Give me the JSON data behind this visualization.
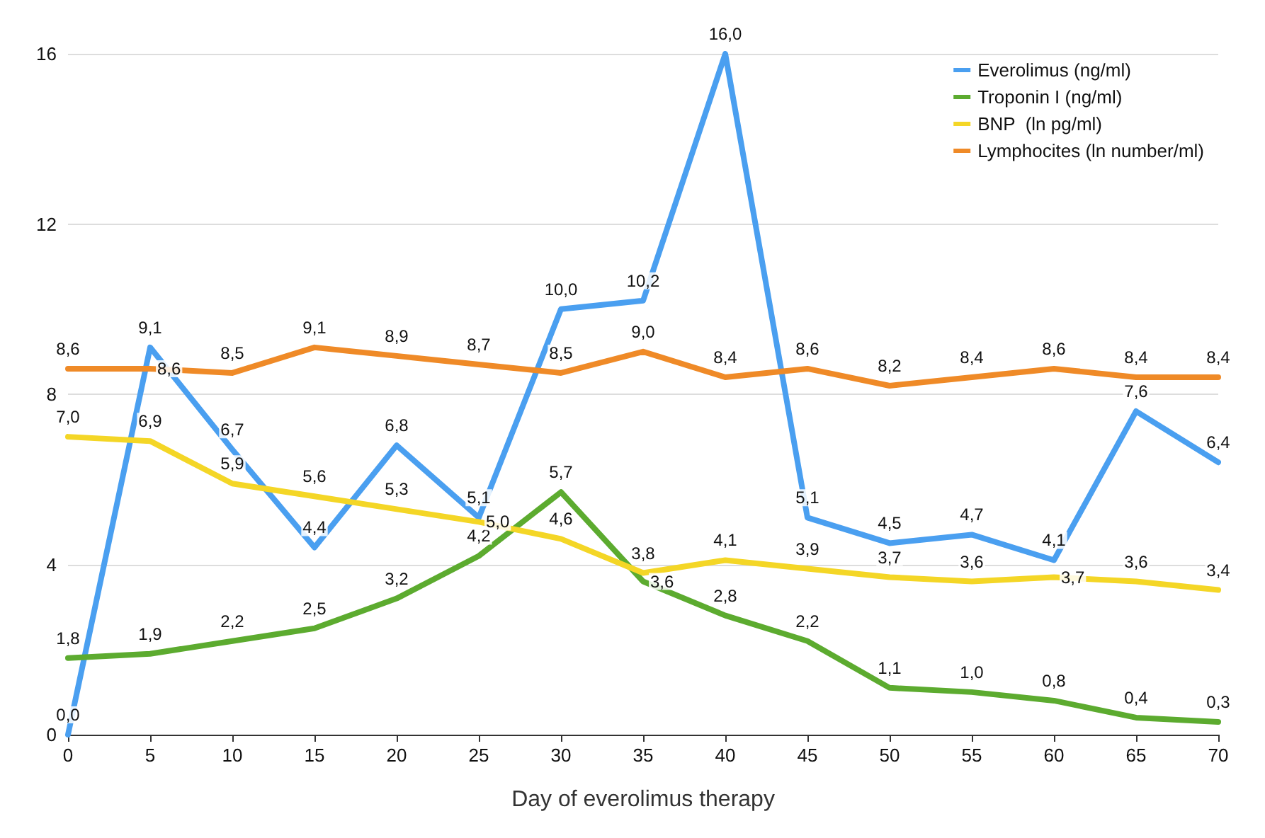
{
  "chart_data": {
    "type": "line",
    "xlabel": "Day of everolimus therapy",
    "x": [
      0,
      5,
      10,
      15,
      20,
      25,
      30,
      35,
      40,
      45,
      50,
      55,
      60,
      65,
      70
    ],
    "xlim": [
      0,
      70
    ],
    "xticks": [
      0,
      5,
      10,
      15,
      20,
      25,
      30,
      35,
      40,
      45,
      50,
      55,
      60,
      65,
      70
    ],
    "ylim": [
      0,
      16
    ],
    "yticks": [
      0,
      4,
      8,
      12,
      16
    ],
    "grid": "y",
    "legend": "top right",
    "line_style": "solid",
    "series": [
      {
        "name": "Everolimus (ng/ml)",
        "color": "#4a9ff0",
        "values": [
          0,
          9.1,
          6.7,
          4.4,
          6.8,
          5.1,
          10,
          10.2,
          16,
          5.1,
          4.5,
          4.7,
          4.1,
          7.6,
          6.4
        ],
        "value_labels": [
          "0,0",
          "9,1",
          "6,7",
          "4,4",
          "6,8",
          "5,1",
          "10,0",
          "10,2",
          "16,0",
          "5,1",
          "4,5",
          "4,7",
          "4,1",
          "7,6",
          "6,4"
        ]
      },
      {
        "name": "Troponin I (ng/ml)",
        "color": "#5cab2f",
        "values": [
          1.8,
          1.9,
          2.2,
          2.5,
          3.2,
          4.2,
          5.7,
          3.6,
          2.8,
          2.2,
          1.1,
          1.0,
          0.8,
          0.4,
          0.3
        ],
        "value_labels": [
          "1,8",
          "1,9",
          "2,2",
          "2,5",
          "3,2",
          "4,2",
          "5,7",
          "3,6",
          "2,8",
          "2,2",
          "1,1",
          "1,0",
          "0,8",
          "0,4",
          "0,3"
        ]
      },
      {
        "name": "BNP  (ln pg/ml)",
        "color": "#f4d626",
        "values": [
          7.0,
          6.9,
          5.9,
          5.6,
          5.3,
          5.0,
          4.6,
          3.8,
          4.1,
          3.9,
          3.7,
          3.6,
          3.7,
          3.6,
          3.4
        ],
        "value_labels": [
          "7,0",
          "6,9",
          "5,9",
          "5,6",
          "5,3",
          "5,0",
          "4,6",
          "3,8",
          "4,1",
          "3,9",
          "3,7",
          "3,6",
          "3,7",
          "3,6",
          "3,4"
        ]
      },
      {
        "name": "Lymphocites (ln number/ml)",
        "color": "#ef8a27",
        "values": [
          8.6,
          8.6,
          8.5,
          9.1,
          8.9,
          8.7,
          8.5,
          9.0,
          8.4,
          8.6,
          8.2,
          8.4,
          8.6,
          8.4,
          8.4
        ],
        "value_labels": [
          "8,6",
          "8,6",
          "8,5",
          "9,1",
          "8,9",
          "8,7",
          "8,5",
          "9,0",
          "8,4",
          "8,6",
          "8,2",
          "8,4",
          "8,6",
          "8,4",
          "8,4"
        ]
      }
    ]
  }
}
